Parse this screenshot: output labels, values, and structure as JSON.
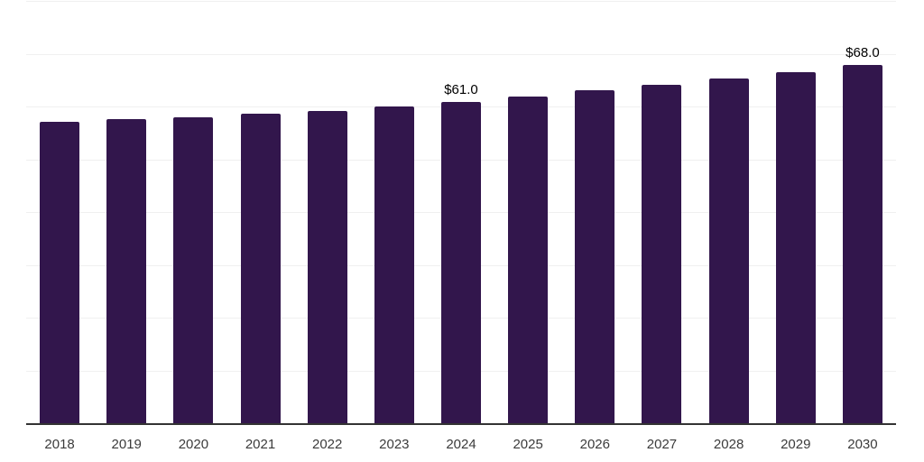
{
  "chart_data": {
    "type": "bar",
    "title": "",
    "xlabel": "",
    "ylabel": "",
    "categories": [
      "2018",
      "2019",
      "2020",
      "2021",
      "2022",
      "2023",
      "2024",
      "2025",
      "2026",
      "2027",
      "2028",
      "2029",
      "2030"
    ],
    "values": [
      57.2,
      57.8,
      58.2,
      58.8,
      59.4,
      60.2,
      61.0,
      62.1,
      63.2,
      64.3,
      65.4,
      66.7,
      68.0
    ],
    "labels": [
      "",
      "",
      "",
      "",
      "",
      "",
      "$61.0",
      "",
      "",
      "",
      "",
      "",
      "$68.0"
    ],
    "ylim": [
      0,
      80
    ],
    "grid_step": 10,
    "grid": true,
    "legend": false,
    "colors": {
      "bar": "#32164c",
      "gridline": "#f0f0f0",
      "axis_line": "#333333",
      "value_label": "#000000",
      "tick_label": "#3b3b3b"
    }
  }
}
